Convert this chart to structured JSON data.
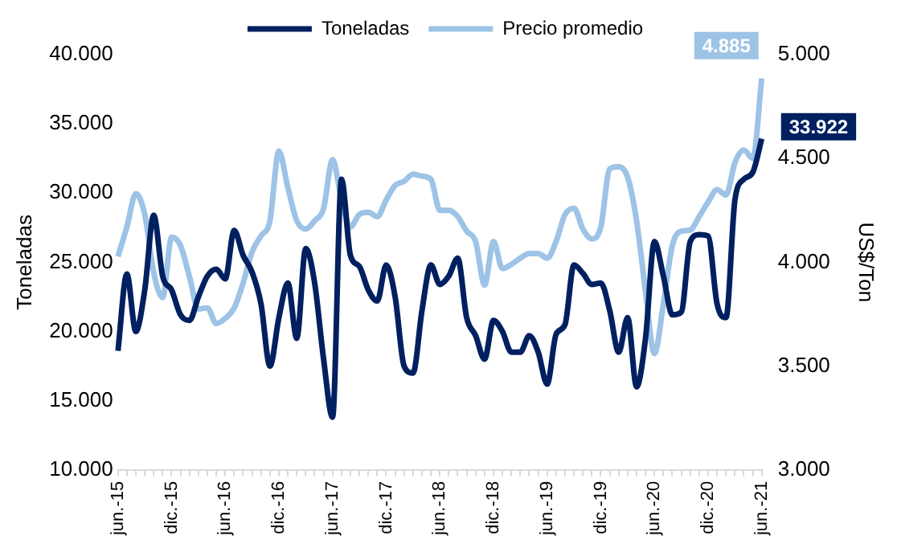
{
  "chart_data": {
    "type": "line",
    "categories": [
      "jun.-15",
      null,
      null,
      null,
      null,
      null,
      "dic.-15",
      null,
      null,
      null,
      null,
      null,
      "jun.-16",
      null,
      null,
      null,
      null,
      null,
      "dic.-16",
      null,
      null,
      null,
      null,
      null,
      "jun.-17",
      null,
      null,
      null,
      null,
      null,
      "dic.-17",
      null,
      null,
      null,
      null,
      null,
      "jun.-18",
      null,
      null,
      null,
      null,
      null,
      "dic.-18",
      null,
      null,
      null,
      null,
      null,
      "jun.-19",
      null,
      null,
      null,
      null,
      null,
      "dic.-19",
      null,
      null,
      null,
      null,
      null,
      "jun.-20",
      null,
      null,
      null,
      null,
      null,
      "dic.-20",
      null,
      null,
      null,
      null,
      null,
      "jun.-21"
    ],
    "series": [
      {
        "name": "Toneladas",
        "color": "#002060",
        "axis": "y",
        "values": [
          18600,
          24150,
          20000,
          23000,
          28400,
          24000,
          23000,
          21200,
          20800,
          22500,
          24000,
          24500,
          23800,
          27300,
          25500,
          24300,
          22000,
          17500,
          21000,
          23500,
          19500,
          26000,
          23500,
          18000,
          13800,
          31000,
          25500,
          24700,
          23000,
          22200,
          24800,
          22500,
          17500,
          17000,
          21500,
          24800,
          23400,
          24000,
          25300,
          21000,
          19700,
          18000,
          20800,
          20000,
          18500,
          18500,
          19700,
          18500,
          16200,
          19800,
          20500,
          24800,
          24200,
          23400,
          23500,
          21500,
          18500,
          21000,
          16000,
          19500,
          26500,
          24000,
          21200,
          21400,
          26500,
          27000,
          26900,
          22000,
          21000,
          29500,
          31000,
          31500,
          33922
        ],
        "value_labels": [
          null,
          null,
          null,
          null,
          null,
          null,
          null,
          null,
          null,
          null,
          null,
          null,
          null,
          null,
          null,
          null,
          null,
          null,
          null,
          null,
          null,
          null,
          null,
          null,
          null,
          null,
          null,
          null,
          null,
          null,
          null,
          null,
          null,
          null,
          null,
          null,
          null,
          null,
          null,
          null,
          null,
          null,
          null,
          null,
          null,
          null,
          null,
          null,
          null,
          null,
          null,
          null,
          null,
          null,
          null,
          null,
          null,
          null,
          null,
          null,
          null,
          null,
          null,
          null,
          null,
          null,
          null,
          null,
          null,
          null,
          null,
          null,
          "33.922"
        ]
      },
      {
        "name": "Precio promedio",
        "color": "#9dc3e6",
        "axis": "y2",
        "values": [
          4028,
          4170,
          4330,
          4230,
          3950,
          3830,
          4120,
          4080,
          3930,
          3775,
          3780,
          3705,
          3730,
          3780,
          3900,
          4050,
          4127,
          4200,
          4536,
          4360,
          4200,
          4160,
          4200,
          4260,
          4494,
          4300,
          4170,
          4230,
          4240,
          4220,
          4300,
          4370,
          4390,
          4424,
          4415,
          4400,
          4250,
          4250,
          4220,
          4150,
          4100,
          3890,
          4100,
          3970,
          3990,
          4020,
          4042,
          4042,
          4020,
          4100,
          4230,
          4260,
          4160,
          4113,
          4170,
          4450,
          4460,
          4410,
          4200,
          3860,
          3560,
          3800,
          4080,
          4150,
          4155,
          4220,
          4290,
          4350,
          4324,
          4480,
          4540,
          4500,
          4885
        ],
        "value_labels": [
          null,
          null,
          null,
          null,
          null,
          null,
          null,
          null,
          null,
          null,
          null,
          null,
          null,
          null,
          null,
          null,
          null,
          null,
          null,
          null,
          null,
          null,
          null,
          null,
          null,
          null,
          null,
          null,
          null,
          null,
          null,
          null,
          null,
          null,
          null,
          null,
          null,
          null,
          null,
          null,
          null,
          null,
          null,
          null,
          null,
          null,
          null,
          null,
          null,
          null,
          null,
          null,
          null,
          null,
          null,
          null,
          null,
          null,
          null,
          null,
          null,
          null,
          null,
          null,
          null,
          null,
          null,
          null,
          null,
          null,
          null,
          null,
          "4.885"
        ]
      }
    ],
    "ylabel": "Toneladas",
    "y2label": "US$/Ton",
    "ylim": [
      10000,
      40000
    ],
    "yticks": [
      {
        "value": 10000,
        "label": "10.000"
      },
      {
        "value": 15000,
        "label": "15.000"
      },
      {
        "value": 20000,
        "label": "20.000"
      },
      {
        "value": 25000,
        "label": "25.000"
      },
      {
        "value": 30000,
        "label": "30.000"
      },
      {
        "value": 35000,
        "label": "35.000"
      },
      {
        "value": 40000,
        "label": "40.000"
      }
    ],
    "y2lim": [
      3000,
      5000
    ],
    "y2ticks": [
      {
        "value": 3000,
        "label": "3.000"
      },
      {
        "value": 3500,
        "label": "3.500"
      },
      {
        "value": 4000,
        "label": "4.000"
      },
      {
        "value": 4500,
        "label": "4.500"
      },
      {
        "value": 5000,
        "label": "5.000"
      }
    ],
    "legend": "top",
    "grid": false,
    "marker": "none",
    "line_style": "solid"
  }
}
